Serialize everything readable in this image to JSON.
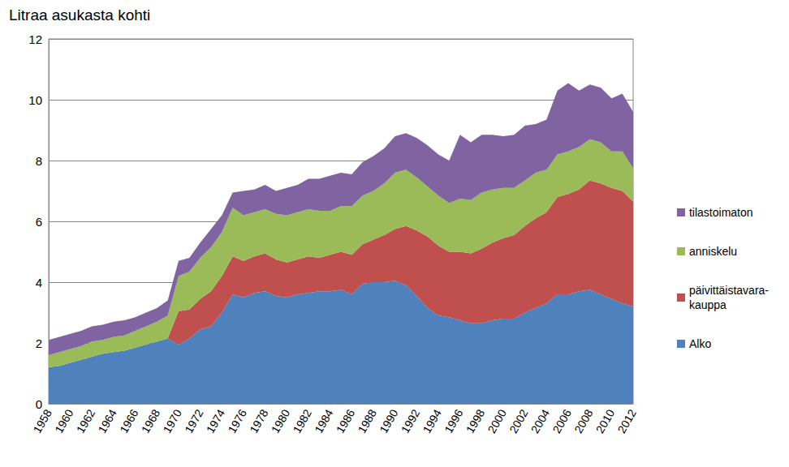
{
  "chart_data": {
    "type": "area",
    "title": "Litraa asukasta kohti",
    "stacked": true,
    "grid": true,
    "legend": "right",
    "categories": [
      "1958",
      null,
      "1960",
      null,
      "1962",
      null,
      "1964",
      null,
      "1966",
      null,
      "1968",
      null,
      "1970",
      null,
      "1972",
      null,
      "1974",
      null,
      "1976",
      null,
      "1978",
      null,
      "1980",
      null,
      "1982",
      null,
      "1984",
      null,
      "1986",
      null,
      "1988",
      null,
      "1990",
      null,
      "1992",
      null,
      "1994",
      null,
      "1996",
      null,
      "1998",
      null,
      "2000",
      null,
      "2002",
      null,
      "2004",
      null,
      "2006",
      null,
      "2008",
      null,
      "2010",
      null,
      "2012"
    ],
    "ylim": [
      0,
      12
    ],
    "yticks": [
      0,
      2,
      4,
      6,
      8,
      10,
      12
    ],
    "series": [
      {
        "name": "Alko",
        "color": "#4f81bd",
        "values": [
          1.2,
          1.25,
          1.35,
          1.45,
          1.55,
          1.65,
          1.7,
          1.75,
          1.85,
          1.95,
          2.05,
          2.15,
          1.95,
          2.15,
          2.45,
          2.55,
          3.0,
          3.6,
          3.5,
          3.65,
          3.7,
          3.55,
          3.5,
          3.6,
          3.65,
          3.7,
          3.7,
          3.75,
          3.6,
          3.95,
          4.0,
          4.0,
          4.05,
          3.9,
          3.55,
          3.15,
          2.9,
          2.85,
          2.75,
          2.65,
          2.65,
          2.75,
          2.8,
          2.8,
          3.0,
          3.15,
          3.3,
          3.6,
          3.6,
          3.7,
          3.75,
          3.6,
          3.45,
          3.3,
          3.2
        ]
      },
      {
        "name": "päivittäistavara-kauppa",
        "color": "#c0504d",
        "values": [
          0,
          0,
          0,
          0,
          0,
          0,
          0,
          0,
          0,
          0,
          0,
          0,
          1.1,
          0.95,
          1.0,
          1.15,
          1.2,
          1.25,
          1.2,
          1.2,
          1.25,
          1.2,
          1.15,
          1.15,
          1.2,
          1.1,
          1.2,
          1.25,
          1.3,
          1.3,
          1.4,
          1.55,
          1.7,
          1.95,
          2.15,
          2.35,
          2.3,
          2.15,
          2.25,
          2.3,
          2.45,
          2.55,
          2.65,
          2.75,
          2.85,
          2.95,
          3.0,
          3.2,
          3.3,
          3.35,
          3.6,
          3.65,
          3.65,
          3.7,
          3.45
        ]
      },
      {
        "name": "anniskelu",
        "color": "#9bbb59",
        "values": [
          0.4,
          0.45,
          0.45,
          0.45,
          0.5,
          0.45,
          0.5,
          0.5,
          0.55,
          0.6,
          0.65,
          0.75,
          1.15,
          1.25,
          1.35,
          1.45,
          1.45,
          1.6,
          1.5,
          1.45,
          1.45,
          1.5,
          1.55,
          1.55,
          1.55,
          1.55,
          1.45,
          1.5,
          1.6,
          1.6,
          1.6,
          1.7,
          1.85,
          1.85,
          1.75,
          1.65,
          1.65,
          1.6,
          1.75,
          1.75,
          1.85,
          1.75,
          1.65,
          1.55,
          1.5,
          1.5,
          1.4,
          1.4,
          1.4,
          1.4,
          1.35,
          1.35,
          1.2,
          1.3,
          1.1
        ]
      },
      {
        "name": "tilastoimaton",
        "color": "#8064a2",
        "values": [
          0.5,
          0.5,
          0.5,
          0.5,
          0.5,
          0.5,
          0.5,
          0.5,
          0.45,
          0.45,
          0.45,
          0.5,
          0.5,
          0.45,
          0.5,
          0.6,
          0.55,
          0.5,
          0.8,
          0.75,
          0.8,
          0.75,
          0.9,
          0.9,
          1.0,
          1.05,
          1.15,
          1.1,
          1.05,
          1.1,
          1.15,
          1.15,
          1.2,
          1.2,
          1.3,
          1.35,
          1.35,
          1.4,
          2.1,
          1.9,
          1.9,
          1.8,
          1.7,
          1.75,
          1.8,
          1.6,
          1.65,
          2.1,
          2.25,
          1.85,
          1.8,
          1.8,
          1.75,
          1.9,
          1.85
        ]
      }
    ]
  }
}
